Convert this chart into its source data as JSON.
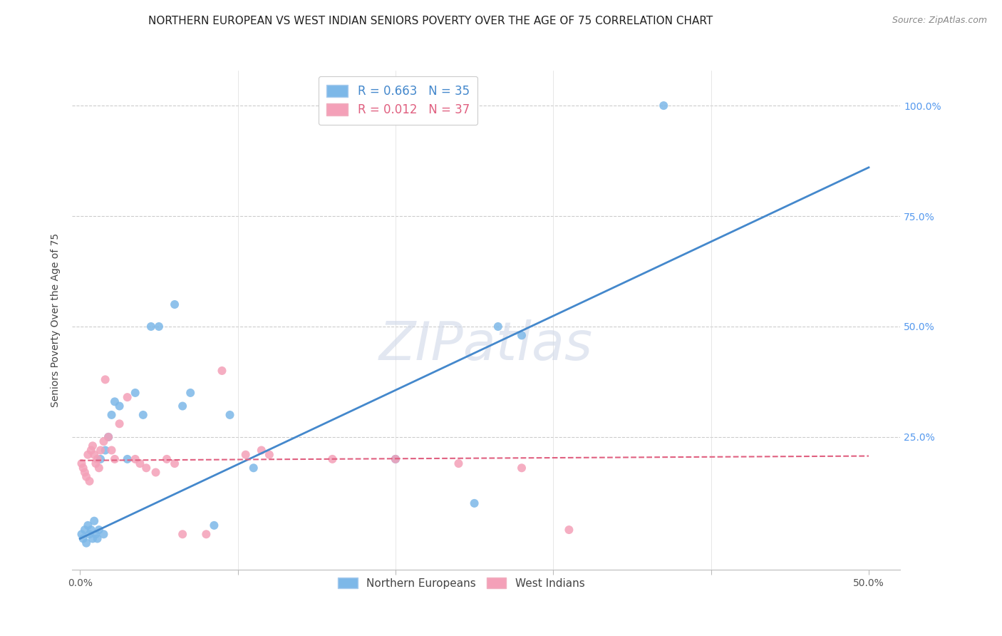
{
  "title": "NORTHERN EUROPEAN VS WEST INDIAN SENIORS POVERTY OVER THE AGE OF 75 CORRELATION CHART",
  "source": "Source: ZipAtlas.com",
  "ylabel": "Seniors Poverty Over the Age of 75",
  "xlim": [
    -0.005,
    0.52
  ],
  "ylim": [
    -0.05,
    1.08
  ],
  "ytick_pos": [
    0.0,
    0.25,
    0.5,
    0.75,
    1.0
  ],
  "ytick_labels": [
    "",
    "25.0%",
    "50.0%",
    "75.0%",
    "100.0%"
  ],
  "xtick_pos": [
    0.0,
    0.1,
    0.2,
    0.3,
    0.4,
    0.5
  ],
  "xtick_labels": [
    "0.0%",
    "",
    "",
    "",
    "",
    "50.0%"
  ],
  "legend1_label": "R = 0.663   N = 35",
  "legend2_label": "R = 0.012   N = 37",
  "legend_group1": "Northern Europeans",
  "legend_group2": "West Indians",
  "blue_color": "#7db8e8",
  "pink_color": "#f4a0b8",
  "blue_line_color": "#4488cc",
  "pink_line_color": "#e06080",
  "watermark": "ZIPatlas",
  "blue_scatter_x": [
    0.001,
    0.002,
    0.003,
    0.004,
    0.005,
    0.006,
    0.007,
    0.008,
    0.009,
    0.01,
    0.011,
    0.012,
    0.013,
    0.015,
    0.016,
    0.018,
    0.02,
    0.022,
    0.025,
    0.03,
    0.035,
    0.04,
    0.045,
    0.05,
    0.06,
    0.065,
    0.07,
    0.085,
    0.095,
    0.11,
    0.2,
    0.25,
    0.265,
    0.28,
    0.37
  ],
  "blue_scatter_y": [
    0.03,
    0.02,
    0.04,
    0.01,
    0.05,
    0.03,
    0.04,
    0.02,
    0.06,
    0.03,
    0.02,
    0.04,
    0.2,
    0.03,
    0.22,
    0.25,
    0.3,
    0.33,
    0.32,
    0.2,
    0.35,
    0.3,
    0.5,
    0.5,
    0.55,
    0.32,
    0.35,
    0.05,
    0.3,
    0.18,
    0.2,
    0.1,
    0.5,
    0.48,
    1.0
  ],
  "pink_scatter_x": [
    0.001,
    0.002,
    0.003,
    0.004,
    0.005,
    0.006,
    0.007,
    0.008,
    0.009,
    0.01,
    0.011,
    0.012,
    0.013,
    0.015,
    0.016,
    0.018,
    0.02,
    0.022,
    0.025,
    0.03,
    0.035,
    0.038,
    0.042,
    0.048,
    0.055,
    0.06,
    0.065,
    0.08,
    0.09,
    0.105,
    0.115,
    0.12,
    0.16,
    0.2,
    0.24,
    0.28,
    0.31
  ],
  "pink_scatter_y": [
    0.19,
    0.18,
    0.17,
    0.16,
    0.21,
    0.15,
    0.22,
    0.23,
    0.21,
    0.19,
    0.2,
    0.18,
    0.22,
    0.24,
    0.38,
    0.25,
    0.22,
    0.2,
    0.28,
    0.34,
    0.2,
    0.19,
    0.18,
    0.17,
    0.2,
    0.19,
    0.03,
    0.03,
    0.4,
    0.21,
    0.22,
    0.21,
    0.2,
    0.2,
    0.19,
    0.18,
    0.04
  ],
  "blue_line_x0": 0.0,
  "blue_line_x1": 0.5,
  "blue_line_y0": 0.02,
  "blue_line_y1": 0.86,
  "pink_line_x0": 0.0,
  "pink_line_x1": 0.5,
  "pink_line_y0": 0.197,
  "pink_line_y1": 0.207,
  "marker_size": 75,
  "title_fontsize": 11,
  "axis_fontsize": 10,
  "tick_fontsize": 10,
  "source_fontsize": 9,
  "right_tick_color": "#5599ee"
}
